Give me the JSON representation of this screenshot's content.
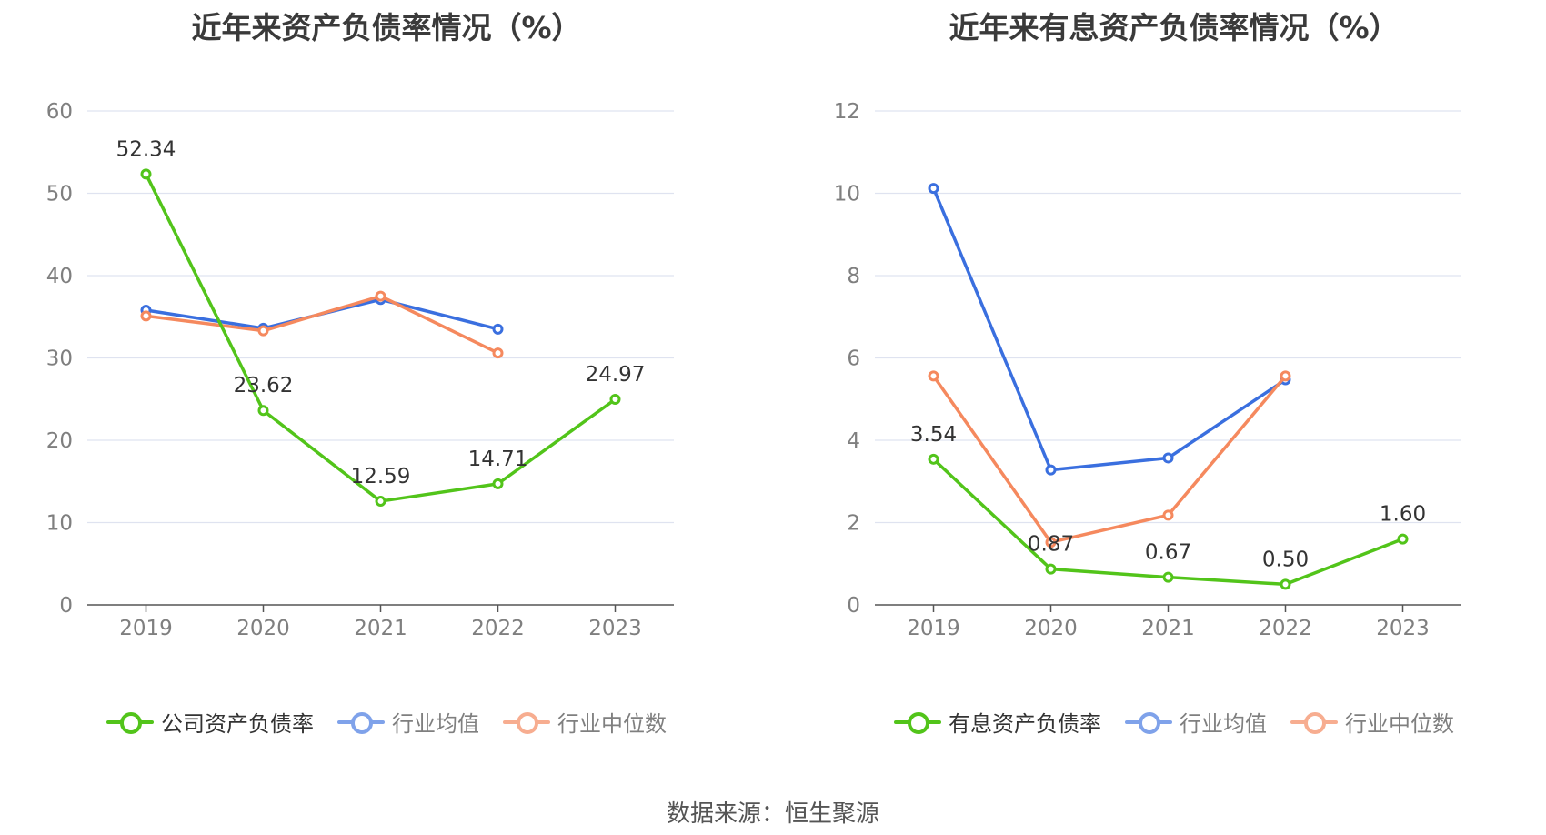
{
  "chart_data": [
    {
      "type": "line",
      "title": "近年来资产负债率情况（%）",
      "categories": [
        "2019",
        "2020",
        "2021",
        "2022",
        "2023"
      ],
      "ylim": [
        0,
        60
      ],
      "yticks": [
        "0",
        "10",
        "20",
        "30",
        "40",
        "50",
        "60"
      ],
      "grid": true,
      "legend_position": "bottom",
      "series": [
        {
          "name": "公司资产负债率",
          "color": "#52c41a",
          "values": [
            52.34,
            23.62,
            12.59,
            14.71,
            24.97
          ],
          "labels": [
            "52.34",
            "23.62",
            "12.59",
            "14.71",
            "24.97"
          ]
        },
        {
          "name": "行业均值",
          "color": "#3a6fdf",
          "values": [
            35.8,
            33.6,
            37.1,
            33.5,
            null
          ]
        },
        {
          "name": "行业中位数",
          "color": "#f5895e",
          "values": [
            35.1,
            33.3,
            37.5,
            30.6,
            null
          ]
        }
      ]
    },
    {
      "type": "line",
      "title": "近年来有息资产负债率情况（%）",
      "categories": [
        "2019",
        "2020",
        "2021",
        "2022",
        "2023"
      ],
      "ylim": [
        0,
        12
      ],
      "yticks": [
        "0",
        "2",
        "4",
        "6",
        "8",
        "10",
        "12"
      ],
      "grid": true,
      "legend_position": "bottom",
      "series": [
        {
          "name": "有息资产负债率",
          "color": "#52c41a",
          "values": [
            3.54,
            0.87,
            0.67,
            0.5,
            1.6
          ],
          "labels": [
            "3.54",
            "0.87",
            "0.67",
            "0.50",
            "1.60"
          ]
        },
        {
          "name": "行业均值",
          "color": "#3a6fdf",
          "values": [
            10.12,
            3.28,
            3.57,
            5.47,
            null
          ]
        },
        {
          "name": "行业中位数",
          "color": "#f5895e",
          "values": [
            5.56,
            1.52,
            2.18,
            5.56,
            null
          ]
        }
      ]
    }
  ],
  "source": "数据来源：恒生聚源"
}
